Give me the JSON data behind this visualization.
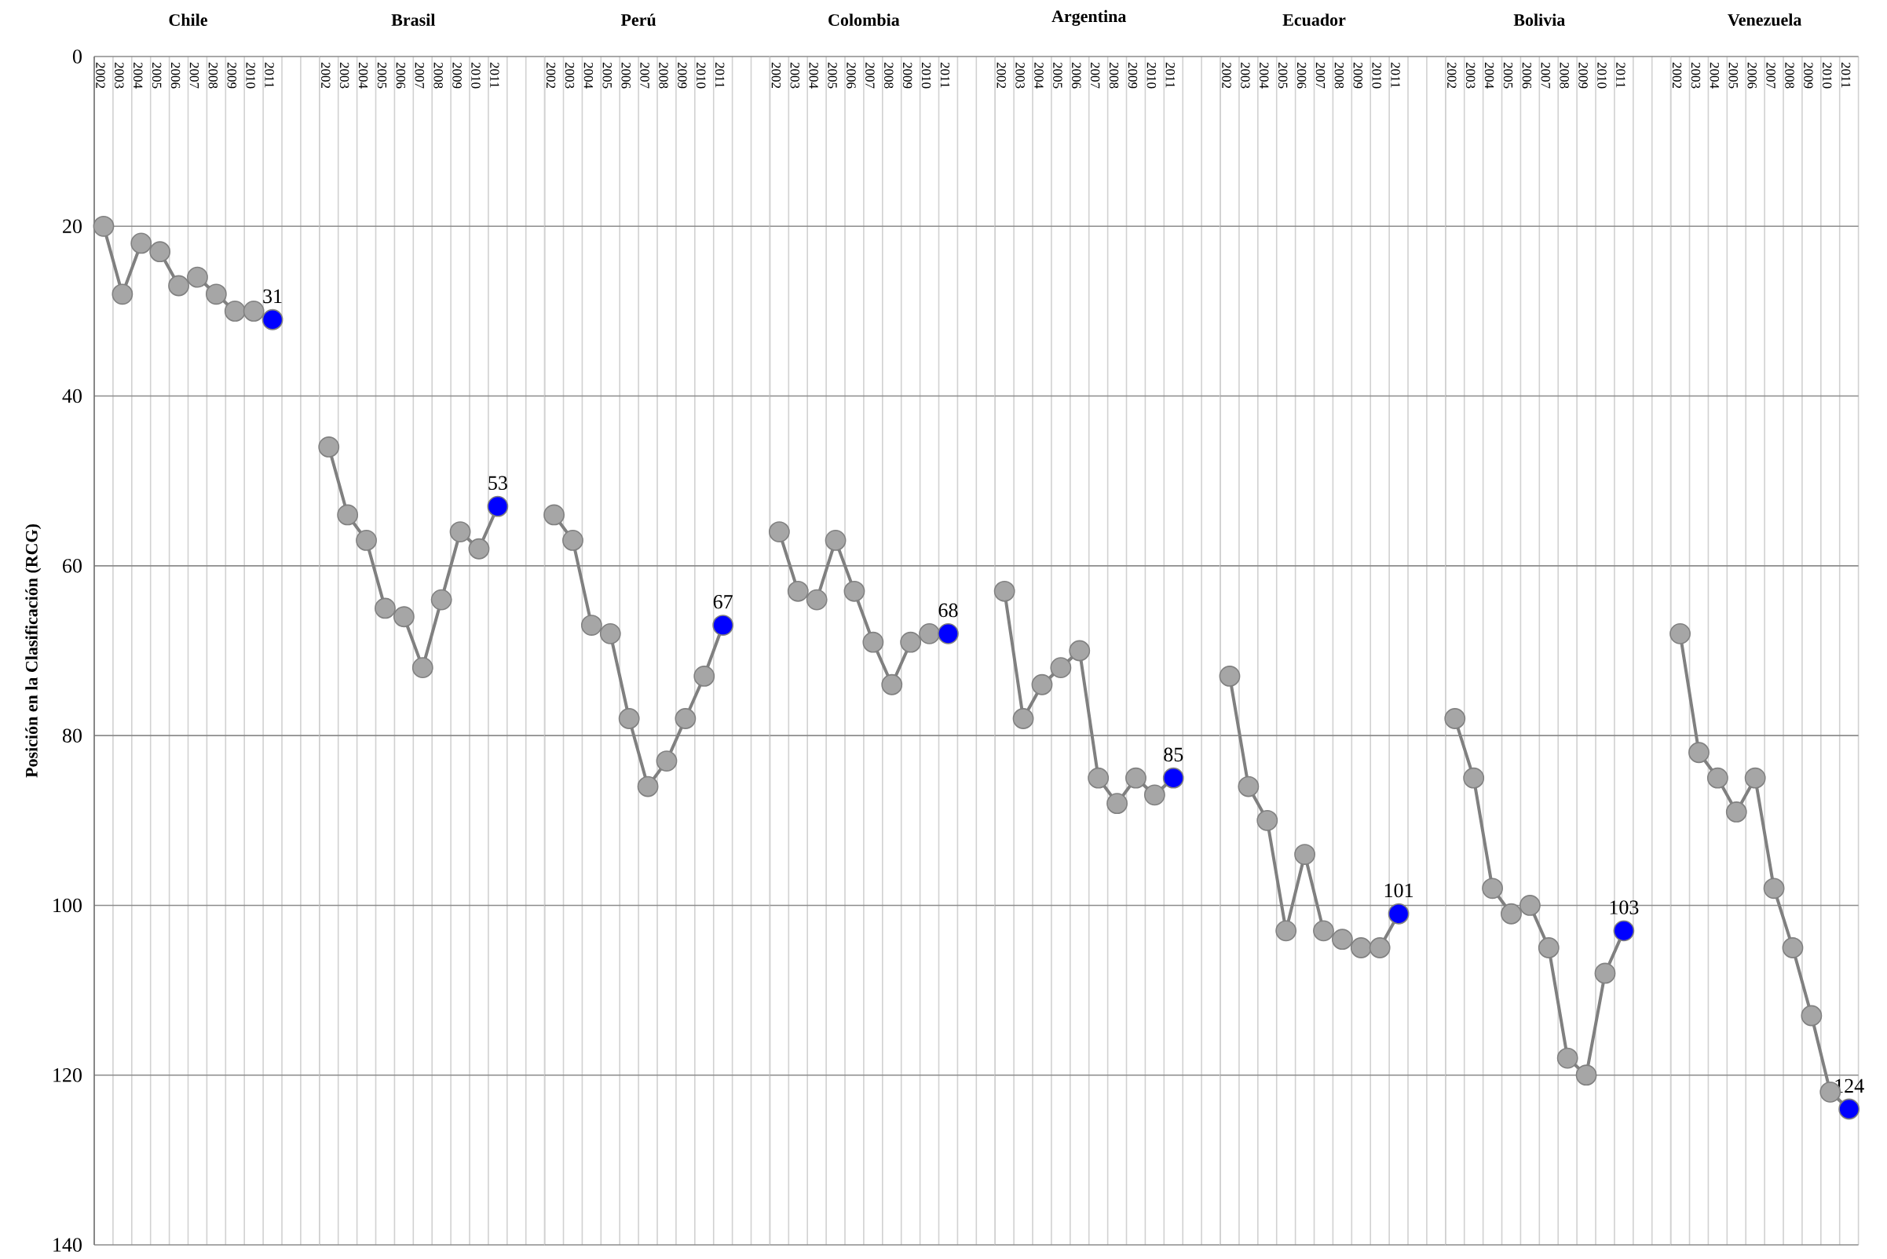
{
  "chart_data": [
    {
      "type": "line",
      "title": "Chile",
      "ylabel": "Posición en la Clasificación (RCG)",
      "categories": [
        "2002",
        "2003",
        "2004",
        "2005",
        "2006",
        "2007",
        "2008",
        "2009",
        "2010",
        "2011"
      ],
      "values": [
        20,
        28,
        22,
        23,
        27,
        26,
        28,
        30,
        30,
        31
      ],
      "color": "#808080",
      "colors": [
        "#a6a6a6",
        "#a6a6a6",
        "#a6a6a6",
        "#a6a6a6",
        "#a6a6a6",
        "#a6a6a6",
        "#a6a6a6",
        "#a6a6a6",
        "#a6a6a6",
        "#0000ff"
      ],
      "value_labels": [
        null,
        null,
        null,
        null,
        null,
        null,
        null,
        null,
        null,
        "31"
      ],
      "ylim": [
        140,
        0
      ],
      "yticks": [
        0,
        20,
        40,
        60,
        80,
        100,
        120,
        140
      ],
      "grid": true,
      "marker": "circle"
    },
    {
      "type": "line",
      "title": "Brasil",
      "categories": [
        "2002",
        "2003",
        "2004",
        "2005",
        "2006",
        "2007",
        "2008",
        "2009",
        "2010",
        "2011"
      ],
      "values": [
        46,
        54,
        57,
        65,
        66,
        72,
        64,
        56,
        58,
        53
      ],
      "color": "#808080",
      "colors": [
        "#a6a6a6",
        "#a6a6a6",
        "#a6a6a6",
        "#a6a6a6",
        "#a6a6a6",
        "#a6a6a6",
        "#a6a6a6",
        "#a6a6a6",
        "#a6a6a6",
        "#0000ff"
      ],
      "value_labels": [
        null,
        null,
        null,
        null,
        null,
        null,
        null,
        null,
        null,
        "53"
      ],
      "ylim": [
        140,
        0
      ],
      "yticks": [
        0,
        20,
        40,
        60,
        80,
        100,
        120,
        140
      ],
      "grid": true,
      "marker": "circle",
      "tick_labels": "x"
    },
    {
      "type": "line",
      "title": "Perú",
      "categories": [
        "2002",
        "2003",
        "2004",
        "2005",
        "2006",
        "2007",
        "2008",
        "2009",
        "2010",
        "2011"
      ],
      "values": [
        54,
        57,
        67,
        68,
        78,
        86,
        83,
        78,
        73,
        67
      ],
      "color": "#808080",
      "colors": [
        "#a6a6a6",
        "#a6a6a6",
        "#a6a6a6",
        "#a6a6a6",
        "#a6a6a6",
        "#a6a6a6",
        "#a6a6a6",
        "#a6a6a6",
        "#a6a6a6",
        "#0000ff"
      ],
      "value_labels": [
        null,
        null,
        null,
        null,
        null,
        null,
        null,
        null,
        null,
        "67"
      ],
      "ylim": [
        140,
        0
      ],
      "yticks": [
        0,
        20,
        40,
        60,
        80,
        100,
        120,
        140
      ],
      "grid": true,
      "marker": "circle",
      "tick_labels": "x"
    },
    {
      "type": "line",
      "title": "Colombia",
      "categories": [
        "2002",
        "2003",
        "2004",
        "2005",
        "2006",
        "2007",
        "2008",
        "2009",
        "2010",
        "2011"
      ],
      "values": [
        56,
        63,
        64,
        57,
        63,
        69,
        74,
        69,
        68,
        68
      ],
      "color": "#808080",
      "colors": [
        "#a6a6a6",
        "#a6a6a6",
        "#a6a6a6",
        "#a6a6a6",
        "#a6a6a6",
        "#a6a6a6",
        "#a6a6a6",
        "#a6a6a6",
        "#a6a6a6",
        "#0000ff"
      ],
      "value_labels": [
        null,
        null,
        null,
        null,
        null,
        null,
        null,
        null,
        null,
        "68"
      ],
      "ylim": [
        140,
        0
      ],
      "yticks": [
        0,
        20,
        40,
        60,
        80,
        100,
        120,
        140
      ],
      "grid": true,
      "marker": "circle",
      "tick_labels": "x"
    },
    {
      "type": "line",
      "title": "Argentina",
      "categories": [
        "2002",
        "2003",
        "2004",
        "2005",
        "2006",
        "2007",
        "2008",
        "2009",
        "2010",
        "2011"
      ],
      "values": [
        63,
        78,
        74,
        72,
        70,
        85,
        88,
        85,
        87,
        85
      ],
      "color": "#808080",
      "colors": [
        "#a6a6a6",
        "#a6a6a6",
        "#a6a6a6",
        "#a6a6a6",
        "#a6a6a6",
        "#a6a6a6",
        "#a6a6a6",
        "#a6a6a6",
        "#a6a6a6",
        "#0000ff"
      ],
      "value_labels": [
        null,
        null,
        null,
        null,
        null,
        null,
        null,
        null,
        null,
        "85"
      ],
      "ylim": [
        140,
        0
      ],
      "yticks": [
        0,
        20,
        40,
        60,
        80,
        100,
        120,
        140
      ],
      "grid": true,
      "marker": "circle",
      "tick_labels": "x"
    },
    {
      "type": "line",
      "title": "Ecuador",
      "categories": [
        "2002",
        "2003",
        "2004",
        "2005",
        "2006",
        "2007",
        "2008",
        "2009",
        "2010",
        "2011"
      ],
      "values": [
        73,
        86,
        90,
        103,
        94,
        103,
        104,
        105,
        105,
        101
      ],
      "color": "#808080",
      "colors": [
        "#a6a6a6",
        "#a6a6a6",
        "#a6a6a6",
        "#a6a6a6",
        "#a6a6a6",
        "#a6a6a6",
        "#a6a6a6",
        "#a6a6a6",
        "#a6a6a6",
        "#0000ff"
      ],
      "value_labels": [
        null,
        null,
        null,
        null,
        null,
        null,
        null,
        null,
        null,
        "101"
      ],
      "ylim": [
        140,
        0
      ],
      "yticks": [
        0,
        20,
        40,
        60,
        80,
        100,
        120,
        140
      ],
      "grid": true,
      "marker": "circle",
      "tick_labels": "x"
    },
    {
      "type": "line",
      "title": "Bolivia",
      "categories": [
        "2002",
        "2003",
        "2004",
        "2005",
        "2006",
        "2007",
        "2008",
        "2009",
        "2010",
        "2011"
      ],
      "values": [
        78,
        85,
        98,
        101,
        100,
        105,
        118,
        120,
        108,
        103
      ],
      "color": "#808080",
      "colors": [
        "#a6a6a6",
        "#a6a6a6",
        "#a6a6a6",
        "#a6a6a6",
        "#a6a6a6",
        "#a6a6a6",
        "#a6a6a6",
        "#a6a6a6",
        "#a6a6a6",
        "#0000ff"
      ],
      "value_labels": [
        null,
        null,
        null,
        null,
        null,
        null,
        null,
        null,
        null,
        "103"
      ],
      "ylim": [
        140,
        0
      ],
      "yticks": [
        0,
        20,
        40,
        60,
        80,
        100,
        120,
        140
      ],
      "grid": true,
      "marker": "circle",
      "tick_labels": "x"
    },
    {
      "type": "line",
      "title": "Venezuela",
      "categories": [
        "2002",
        "2003",
        "2004",
        "2005",
        "2006",
        "2007",
        "2008",
        "2009",
        "2010",
        "2011"
      ],
      "values": [
        68,
        82,
        85,
        89,
        85,
        98,
        105,
        113,
        122,
        124
      ],
      "color": "#808080",
      "colors": [
        "#a6a6a6",
        "#a6a6a6",
        "#a6a6a6",
        "#a6a6a6",
        "#a6a6a6",
        "#a6a6a6",
        "#a6a6a6",
        "#a6a6a6",
        "#a6a6a6",
        "#0000ff"
      ],
      "value_labels": [
        null,
        null,
        null,
        null,
        null,
        null,
        null,
        null,
        null,
        "124"
      ],
      "ylim": [
        140,
        0
      ],
      "yticks": [
        0,
        20,
        40,
        60,
        80,
        100,
        120,
        140
      ],
      "grid": true,
      "marker": "circle",
      "tick_labels": "x"
    }
  ]
}
